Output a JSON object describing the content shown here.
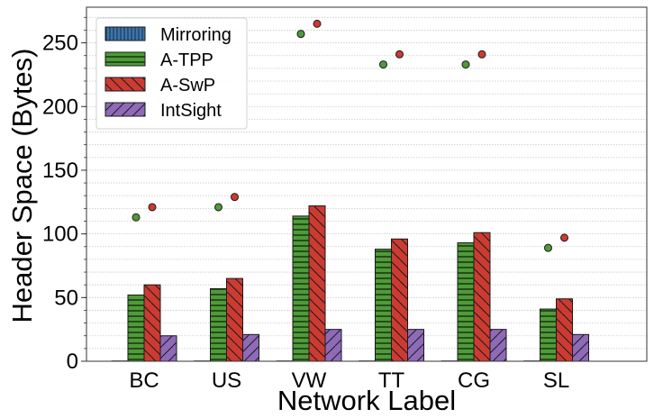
{
  "chart_data": {
    "type": "bar",
    "title": "",
    "xlabel": "Network Label",
    "ylabel": "Header Space (Bytes)",
    "ylim": [
      0,
      278
    ],
    "yticks": [
      0,
      50,
      100,
      150,
      200,
      250
    ],
    "ytick_labels": [
      "0",
      "50",
      "100",
      "150",
      "200",
      "250"
    ],
    "minor_grid_step": 10,
    "grid": true,
    "categories": [
      "BC",
      "US",
      "VW",
      "TT",
      "CG",
      "SL"
    ],
    "series": [
      {
        "name": "Mirroring",
        "color": "#3a75b0",
        "hatch": "vertical",
        "values": [
          0,
          0,
          0,
          0,
          0,
          0
        ]
      },
      {
        "name": "A-TPP",
        "color": "#4f9a3a",
        "hatch": "horizontal",
        "values": [
          52,
          57,
          114,
          88,
          93,
          41
        ]
      },
      {
        "name": "A-SwP",
        "color": "#cc3b32",
        "hatch": "backslash",
        "values": [
          60,
          65,
          122,
          96,
          101,
          49
        ]
      },
      {
        "name": "IntSight",
        "color": "#8f6ab8",
        "hatch": "slash",
        "values": [
          20,
          21,
          25,
          25,
          25,
          21
        ]
      }
    ],
    "points": [
      {
        "name": "A-TPP",
        "color": "#4f9a3a",
        "values": [
          113,
          121,
          257,
          233,
          233,
          89
        ]
      },
      {
        "name": "A-SwP",
        "color": "#cc3b32",
        "values": [
          121,
          129,
          265,
          241,
          241,
          97
        ]
      }
    ],
    "legend": {
      "placement": "top-left",
      "entries": [
        "Mirroring",
        "A-TPP",
        "A-SwP",
        "IntSight"
      ]
    }
  }
}
